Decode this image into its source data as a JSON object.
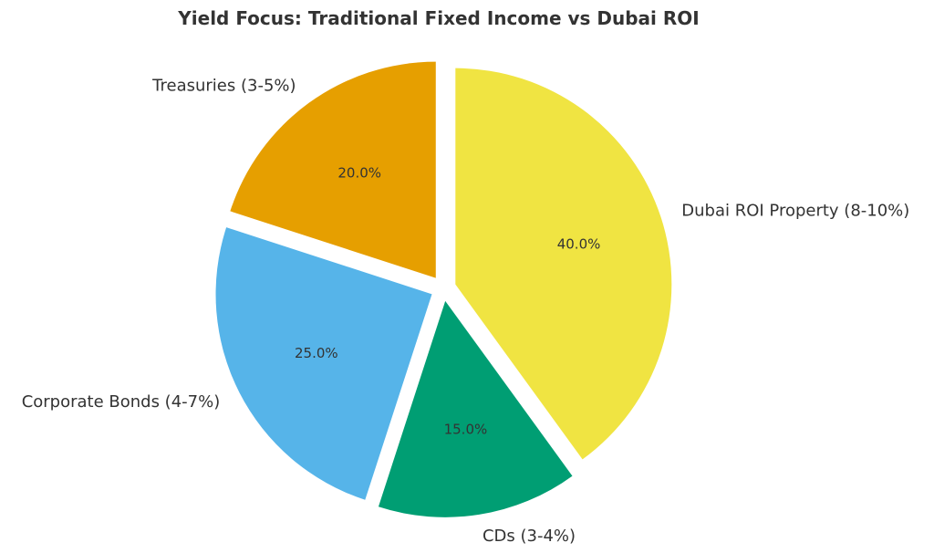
{
  "chart_data": {
    "type": "pie",
    "title": "Yield Focus: Traditional Fixed Income vs Dubai ROI",
    "slices": [
      {
        "label": "Dubai ROI Property (8-10%)",
        "value": 40.0,
        "pct_label": "40.0%",
        "color": "#F0E442"
      },
      {
        "label": "CDs (3-4%)",
        "value": 15.0,
        "pct_label": "15.0%",
        "color": "#009E73"
      },
      {
        "label": "Corporate Bonds (4-7%)",
        "value": 25.0,
        "pct_label": "25.0%",
        "color": "#56B4E9"
      },
      {
        "label": "Treasuries (3-5%)",
        "value": 20.0,
        "pct_label": "20.0%",
        "color": "#E69F00"
      }
    ],
    "start_angle_deg": 90,
    "direction": "clockwise",
    "exploded": true,
    "legend": "none"
  }
}
